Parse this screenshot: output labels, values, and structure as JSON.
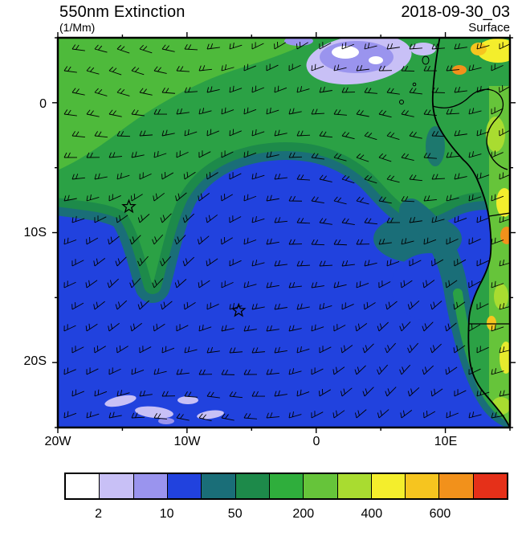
{
  "header": {
    "title": "550nm Extinction",
    "units": "(1/Mm)",
    "datetime": "2018-09-30_03",
    "level": "Surface"
  },
  "axes": {
    "y_labels": [
      "0",
      "10S",
      "20S"
    ],
    "x_labels": [
      "20W",
      "10W",
      "0",
      "10E"
    ]
  },
  "colorbar": {
    "colors": [
      "#ffffff",
      "#c8c0f6",
      "#9a94ee",
      "#2142de",
      "#1a6e78",
      "#1d8a4a",
      "#2fae3c",
      "#66c43a",
      "#a9dc30",
      "#f4ee2c",
      "#f6c51f",
      "#f2911b",
      "#e53019"
    ],
    "tick_labels": [
      "2",
      "10",
      "50",
      "200",
      "400",
      "600"
    ],
    "label_boundary_indices": [
      1,
      3,
      5,
      7,
      9,
      11
    ]
  },
  "chart_data": {
    "type": "heatmap",
    "title": "550nm Extinction",
    "units": "1/Mm",
    "valid_time": "2018-09-30_03",
    "level": "Surface",
    "projection": "lat-lon map of SE Atlantic and SW African coast",
    "lon_range": [
      -20,
      15
    ],
    "lat_range": [
      -25,
      5
    ],
    "x_tick_labels": [
      "20W",
      "10W",
      "0",
      "10E"
    ],
    "y_tick_labels": [
      "0",
      "10S",
      "20S"
    ],
    "contour_levels": [
      1,
      2,
      5,
      10,
      25,
      50,
      100,
      200,
      300,
      400,
      500,
      600
    ],
    "colorbar_labels": [
      2,
      10,
      50,
      200,
      400,
      600
    ],
    "legend_position": "bottom horizontal colorbar",
    "grid": false,
    "overlays": [
      "wind barbs",
      "coastline",
      "country borders"
    ],
    "markers": [
      {
        "type": "star",
        "lon": -14.5,
        "lat": -8
      },
      {
        "type": "star",
        "lon": -6.0,
        "lat": -16
      }
    ],
    "regions": [
      {
        "area": "south and central Atlantic (bulk of domain)",
        "value_1_per_Mm": "10-25 (blue)"
      },
      {
        "area": "transition band arcing around blue dome and along coast",
        "value_1_per_Mm": "25-100 (dark teal / dark green)"
      },
      {
        "area": "northern band and Gulf of Guinea",
        "value_1_per_Mm": "100-200 (green)"
      },
      {
        "area": "pockets near 2-6E, 2-4N (top center)",
        "value_1_per_Mm": "<1-10 (white / lavender / periwinkle)"
      },
      {
        "area": "small patches near 13-16W, 22-24S (bottom left)",
        "value_1_per_Mm": "2-10 (lavender)"
      },
      {
        "area": "African coastal strip and inland (right edge)",
        "value_1_per_Mm": "200-600+ (yellow-green, yellow, orange)"
      }
    ]
  }
}
